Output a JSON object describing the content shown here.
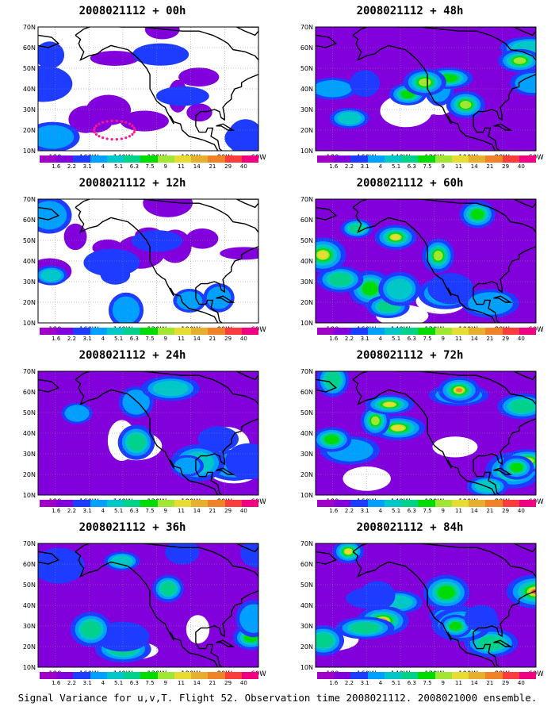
{
  "caption": "Signal Variance for u,v,T. Flight 52. Observation time 2008021112. 2008021000 ensemble.",
  "map": {
    "lat_ticks": [
      "70N",
      "60N",
      "50N",
      "40N",
      "30N",
      "20N",
      "10N"
    ],
    "lon_ticks": [
      "180",
      "160W",
      "140W",
      "120W",
      "100W",
      "80W",
      "60W"
    ],
    "lat_range": [
      10,
      70
    ],
    "lon_range": [
      -190,
      -60
    ],
    "grid": true
  },
  "colorbar": {
    "labels": [
      "1.6",
      "2.2",
      "3.1",
      "4",
      "5.1",
      "6.3",
      "7.5",
      "9",
      "11",
      "14",
      "21",
      "29",
      "40"
    ],
    "colors": [
      "#a000c8",
      "#8200dc",
      "#1e3cff",
      "#00a0ff",
      "#00c8c8",
      "#00d28c",
      "#00dc00",
      "#a0e632",
      "#e6dc32",
      "#e6af2d",
      "#f08228",
      "#fa3c3c",
      "#f00082"
    ]
  },
  "panels": [
    {
      "title": "2008021112 + 00h",
      "lead_hours": 0,
      "intensity": 0.9,
      "track": true
    },
    {
      "title": "2008021112 + 12h",
      "lead_hours": 12,
      "intensity": 1.4,
      "track": false
    },
    {
      "title": "2008021112 + 24h",
      "lead_hours": 24,
      "intensity": 2.0,
      "track": false
    },
    {
      "title": "2008021112 + 36h",
      "lead_hours": 36,
      "intensity": 2.6,
      "track": false
    },
    {
      "title": "2008021112 + 48h",
      "lead_hours": 48,
      "intensity": 3.0,
      "track": false
    },
    {
      "title": "2008021112 + 60h",
      "lead_hours": 60,
      "intensity": 3.5,
      "track": false
    },
    {
      "title": "2008021112 + 72h",
      "lead_hours": 72,
      "intensity": 4.2,
      "track": false
    },
    {
      "title": "2008021112 + 84h",
      "lead_hours": 84,
      "intensity": 4.8,
      "track": false
    }
  ]
}
